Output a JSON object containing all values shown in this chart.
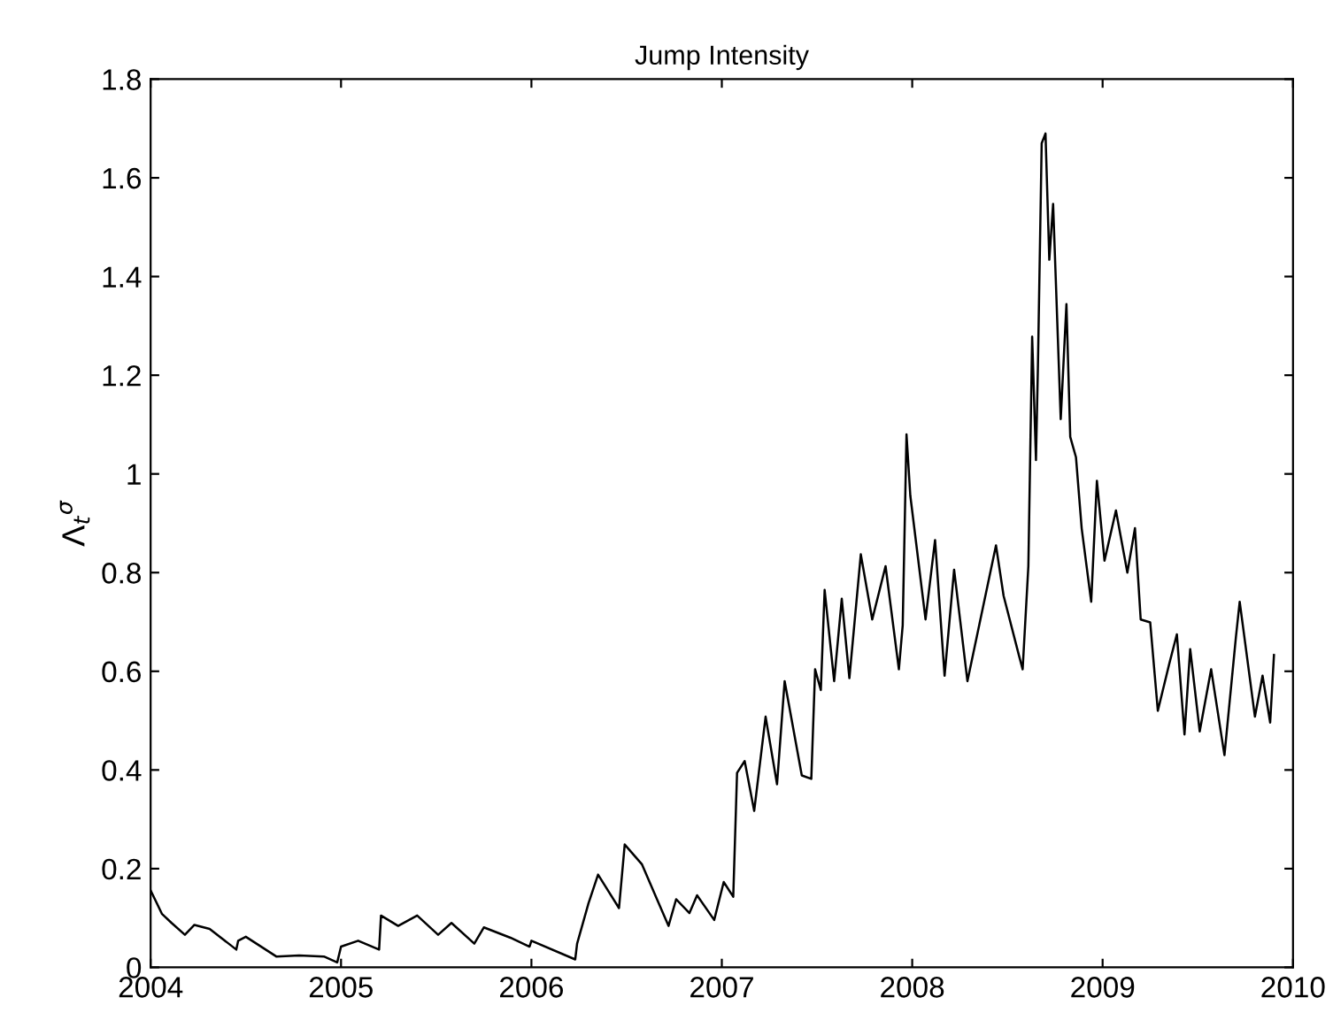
{
  "chart_data": {
    "type": "line",
    "title": "Jump Intensity",
    "ylabel": "Λ$_{t}$$^{σ}$",
    "xlim": [
      2004,
      2010
    ],
    "xticks": [
      2004,
      2005,
      2006,
      2007,
      2008,
      2009,
      2010
    ],
    "ylim": [
      0,
      1.8
    ],
    "yticks": [
      0,
      0.2,
      0.4,
      0.6,
      0.8,
      1,
      1.2,
      1.4,
      1.6,
      1.8
    ],
    "grid": false,
    "series": [
      {
        "color": "#000000",
        "line_style": "solid",
        "x": [
          2004.0,
          2004.06,
          2004.11,
          2004.18,
          2004.23,
          2004.31,
          2004.45,
          2004.46,
          2004.5,
          2004.66,
          2004.78,
          2004.91,
          2004.98,
          2005.0,
          2005.09,
          2005.2,
          2005.21,
          2005.3,
          2005.4,
          2005.51,
          2005.58,
          2005.7,
          2005.75,
          2005.89,
          2005.99,
          2006.0,
          2006.23,
          2006.24,
          2006.3,
          2006.35,
          2006.46,
          2006.49,
          2006.58,
          2006.72,
          2006.76,
          2006.83,
          2006.87,
          2006.96,
          2007.01,
          2007.06,
          2007.08,
          2007.12,
          2007.17,
          2007.23,
          2007.29,
          2007.33,
          2007.42,
          2007.47,
          2007.49,
          2007.52,
          2007.54,
          2007.59,
          2007.63,
          2007.67,
          2007.73,
          2007.79,
          2007.86,
          2007.93,
          2007.95,
          2007.97,
          2007.99,
          2008.07,
          2008.12,
          2008.17,
          2008.22,
          2008.29,
          2008.44,
          2008.48,
          2008.56,
          2008.58,
          2008.61,
          2008.63,
          2008.65,
          2008.66,
          2008.68,
          2008.7,
          2008.72,
          2008.74,
          2008.78,
          2008.81,
          2008.83,
          2008.86,
          2008.89,
          2008.94,
          2008.97,
          2009.01,
          2009.07,
          2009.13,
          2009.17,
          2009.2,
          2009.25,
          2009.29,
          2009.35,
          2009.39,
          2009.43,
          2009.46,
          2009.51,
          2009.57,
          2009.64,
          2009.7,
          2009.72,
          2009.8,
          2009.84,
          2009.88,
          2009.9
        ],
        "values": [
          0.156,
          0.108,
          0.09,
          0.066,
          0.086,
          0.078,
          0.036,
          0.054,
          0.062,
          0.022,
          0.024,
          0.022,
          0.01,
          0.042,
          0.054,
          0.036,
          0.105,
          0.084,
          0.105,
          0.066,
          0.09,
          0.048,
          0.081,
          0.06,
          0.042,
          0.054,
          0.016,
          0.048,
          0.13,
          0.188,
          0.12,
          0.249,
          0.209,
          0.084,
          0.138,
          0.11,
          0.146,
          0.096,
          0.173,
          0.143,
          0.394,
          0.418,
          0.317,
          0.508,
          0.371,
          0.58,
          0.389,
          0.382,
          0.604,
          0.562,
          0.765,
          0.58,
          0.747,
          0.586,
          0.837,
          0.705,
          0.813,
          0.604,
          0.693,
          1.08,
          0.956,
          0.705,
          0.866,
          0.591,
          0.806,
          0.58,
          0.855,
          0.753,
          0.633,
          0.604,
          0.813,
          1.278,
          1.028,
          1.213,
          1.67,
          1.69,
          1.434,
          1.547,
          1.111,
          1.344,
          1.075,
          1.034,
          0.89,
          0.741,
          0.986,
          0.824,
          0.926,
          0.8,
          0.89,
          0.705,
          0.699,
          0.52,
          0.615,
          0.675,
          0.472,
          0.645,
          0.478,
          0.604,
          0.43,
          0.669,
          0.741,
          0.508,
          0.591,
          0.496,
          0.633
        ]
      }
    ]
  }
}
